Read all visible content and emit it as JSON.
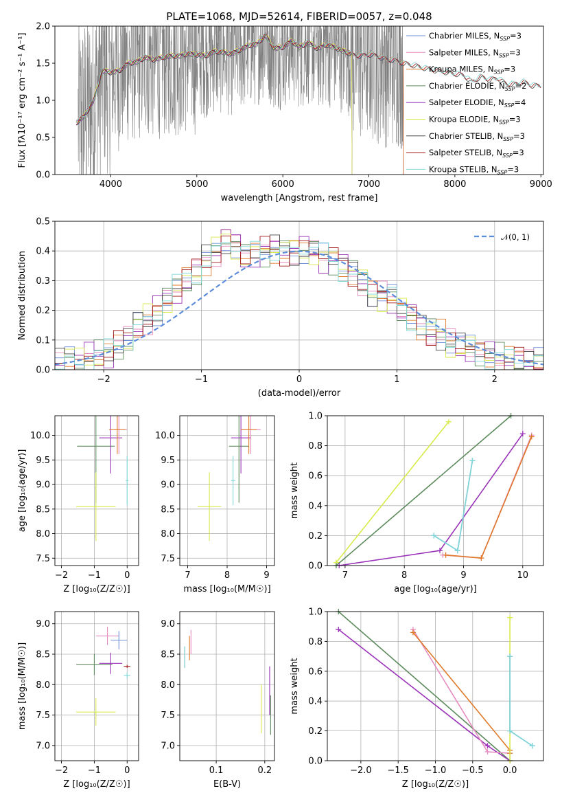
{
  "title": "PLATE=1068, MJD=52614, FIBERID=0057, z=0.048",
  "colors": {
    "Chabrier MILES": "#6f8fd8",
    "Salpeter MILES": "#e58bbf",
    "Kroupa MILES": "#e07a2a",
    "Chabrier ELODIE": "#5c8a5c",
    "Salpeter ELODIE": "#9a34b8",
    "Kroupa ELODIE": "#d8ea4a",
    "Chabrier STELIB": "#444444",
    "Salpeter STELIB": "#a11818",
    "Kroupa STELIB": "#7fd8d8",
    "data": "#808080",
    "gaussian": "#5b8bd9"
  },
  "chart_data": [
    {
      "type": "line",
      "xlabel": "wavelength [Angstrom, rest frame]",
      "ylabel": "Flux [fλ10⁻¹⁷ erg cm⁻² s⁻¹ A⁻¹]",
      "xlim": [
        3350,
        9030
      ],
      "ylim": [
        0,
        2.0
      ],
      "xticks": [
        "4000",
        "5000",
        "6000",
        "7000",
        "8000",
        "9000"
      ],
      "yticks": [
        "0.0",
        "0.5",
        "1.0",
        "1.5",
        "2.0"
      ],
      "legend_position": "right",
      "legend": [
        "Chabrier MILES, NSSP=3",
        "Salpeter MILES, NSSP=3",
        "Kroupa MILES, NSSP=3",
        "Chabrier ELODIE, NSSP=2",
        "Salpeter ELODIE, NSSP=4",
        "Kroupa ELODIE, NSSP=3",
        "Chabrier STELIB, NSSP=3",
        "Salpeter STELIB, NSSP=3",
        "Kroupa STELIB, NSSP=3"
      ],
      "model_curve": {
        "x": [
          3600,
          3700,
          3800,
          3900,
          4000,
          4100,
          4200,
          4300,
          4400,
          4500,
          4600,
          4700,
          4800,
          4900,
          5000,
          5100,
          5200,
          5300,
          5400,
          5500,
          5600,
          5700,
          5800,
          5900,
          6000,
          6100,
          6200,
          6300,
          6400,
          6500,
          6600,
          6700,
          6800,
          6900,
          7000,
          7100,
          7200,
          7300,
          7400,
          7500,
          7600,
          7700,
          7800,
          7900,
          8000,
          8100,
          8200,
          8300,
          8400,
          8500,
          8600,
          8700,
          8800,
          8900,
          9000
        ],
        "y": [
          0.7,
          0.8,
          1.0,
          1.4,
          1.38,
          1.4,
          1.5,
          1.52,
          1.58,
          1.55,
          1.58,
          1.6,
          1.6,
          1.63,
          1.62,
          1.6,
          1.66,
          1.65,
          1.63,
          1.68,
          1.74,
          1.76,
          1.88,
          1.7,
          1.72,
          1.8,
          1.72,
          1.78,
          1.7,
          1.75,
          1.72,
          1.67,
          1.62,
          1.6,
          1.62,
          1.6,
          1.55,
          1.54,
          1.5,
          1.48,
          1.45,
          1.42,
          1.4,
          1.38,
          1.36,
          1.34,
          1.25,
          1.32,
          1.28,
          1.3,
          1.22,
          1.22,
          1.25,
          1.2,
          1.2
        ]
      },
      "data_range": [
        3620,
        7400
      ],
      "model_coverage_end": {
        "Chabrier MILES": 7400,
        "Salpeter MILES": 7400,
        "Kroupa MILES": 7400,
        "Chabrier ELODIE": 6800,
        "Salpeter ELODIE": 6800,
        "Kroupa ELODIE": 6800,
        "Chabrier STELIB": 9000,
        "Salpeter STELIB": 9000,
        "Kroupa STELIB": 9000
      }
    },
    {
      "type": "bar",
      "xlabel": "(data-model)/error",
      "ylabel": "Normed distribution",
      "xlim": [
        -2.5,
        2.5
      ],
      "ylim": [
        0,
        0.5
      ],
      "xticks": [
        "−2",
        "−1",
        "0",
        "1",
        "2"
      ],
      "yticks": [
        "0.0",
        "0.1",
        "0.2",
        "0.3",
        "0.4",
        "0.5"
      ],
      "legend": [
        "𝒩(0, 1)"
      ],
      "legend_position": "top-right",
      "bin_edges_start": -2.5,
      "bin_width": 0.1,
      "histogram": [
        0.02,
        0.03,
        0.03,
        0.04,
        0.05,
        0.05,
        0.08,
        0.1,
        0.15,
        0.17,
        0.2,
        0.24,
        0.27,
        0.3,
        0.33,
        0.37,
        0.4,
        0.44,
        0.42,
        0.38,
        0.39,
        0.4,
        0.41,
        0.4,
        0.4,
        0.41,
        0.4,
        0.38,
        0.37,
        0.35,
        0.33,
        0.3,
        0.26,
        0.25,
        0.24,
        0.2,
        0.18,
        0.15,
        0.13,
        0.12,
        0.09,
        0.08,
        0.07,
        0.06,
        0.05,
        0.04,
        0.03,
        0.03,
        0.02,
        0.02
      ],
      "gaussian": {
        "mean": 0,
        "sigma": 1
      }
    },
    {
      "type": "scatter",
      "xlabel": "Z [log₁₀(Z/Z☉)]",
      "ylabel": "age  [log₁₀(age/yr)]",
      "xlim": [
        -2.2,
        0.35
      ],
      "ylim": [
        7.35,
        10.4
      ],
      "xticks": [
        "−2",
        "−1",
        "0"
      ],
      "yticks": [
        "7.5",
        "8.0",
        "8.5",
        "9.0",
        "9.5",
        "10.0"
      ],
      "errorbars": [
        {
          "series": "Chabrier ELODIE",
          "x": -0.95,
          "y": 9.78,
          "xerr": 1.15,
          "yerr": 2.3
        },
        {
          "series": "Salpeter ELODIE",
          "x": -0.5,
          "y": 9.95,
          "xerr": 0.7,
          "yerr": 1.45
        },
        {
          "series": "Kroupa ELODIE",
          "x": -0.95,
          "y": 8.55,
          "xerr": 1.2,
          "yerr": 1.4
        },
        {
          "series": "Salpeter MILES",
          "x": -0.25,
          "y": 10.12,
          "xerr": 0.5,
          "yerr": 1.0
        },
        {
          "series": "Kroupa MILES",
          "x": -0.3,
          "y": 10.12,
          "xerr": 0.5,
          "yerr": 1.0
        },
        {
          "series": "Kroupa STELIB",
          "x": 0.0,
          "y": 9.08,
          "xerr": 0.08,
          "yerr": 1.0
        }
      ]
    },
    {
      "type": "scatter",
      "xlabel": "mass [log₁₀(M/M☉)]",
      "ylabel": "",
      "xlim": [
        6.8,
        9.2
      ],
      "ylim": [
        7.35,
        10.4
      ],
      "xticks": [
        "7",
        "8",
        "9"
      ],
      "yticks": [
        "7.5",
        "8.0",
        "8.5",
        "9.0",
        "9.5",
        "10.0"
      ],
      "errorbars": [
        {
          "series": "Chabrier ELODIE",
          "x": 8.3,
          "y": 9.78,
          "xerr": 0.5,
          "yerr": 2.3
        },
        {
          "series": "Salpeter ELODIE",
          "x": 8.35,
          "y": 9.95,
          "xerr": 0.5,
          "yerr": 1.45
        },
        {
          "series": "Kroupa ELODIE",
          "x": 7.55,
          "y": 8.55,
          "xerr": 0.6,
          "yerr": 1.4
        },
        {
          "series": "Salpeter MILES",
          "x": 8.6,
          "y": 10.12,
          "xerr": 0.5,
          "yerr": 1.0
        },
        {
          "series": "Kroupa MILES",
          "x": 8.55,
          "y": 10.12,
          "xerr": 0.4,
          "yerr": 1.0
        },
        {
          "series": "Kroupa STELIB",
          "x": 8.15,
          "y": 9.08,
          "xerr": 0.1,
          "yerr": 1.0
        }
      ]
    },
    {
      "type": "line",
      "xlabel": "age  [log₁₀(age/yr)]",
      "ylabel": "mass weight",
      "xlim": [
        6.7,
        10.35
      ],
      "ylim": [
        0,
        1.0
      ],
      "xticks": [
        "7",
        "8",
        "9",
        "10"
      ],
      "yticks": [
        "0.0",
        "0.2",
        "0.4",
        "0.6",
        "0.8",
        "1.0"
      ],
      "series": [
        {
          "key": "Kroupa ELODIE",
          "x": [
            6.85,
            8.75
          ],
          "y": [
            0.02,
            0.96
          ]
        },
        {
          "key": "Chabrier ELODIE",
          "x": [
            6.85,
            9.8
          ],
          "y": [
            0.0,
            1.0
          ]
        },
        {
          "key": "Salpeter ELODIE",
          "x": [
            6.9,
            8.6,
            10.0
          ],
          "y": [
            0.0,
            0.1,
            0.88
          ]
        },
        {
          "key": "Salpeter MILES",
          "x": [
            8.65,
            9.3,
            10.15
          ],
          "y": [
            0.07,
            0.05,
            0.87
          ]
        },
        {
          "key": "Kroupa MILES",
          "x": [
            8.7,
            9.3,
            10.15
          ],
          "y": [
            0.07,
            0.05,
            0.86
          ]
        },
        {
          "key": "Chabrier MILES",
          "x": [
            8.5,
            8.9,
            9.15
          ],
          "y": [
            0.2,
            0.1,
            0.7
          ]
        },
        {
          "key": "Kroupa STELIB",
          "x": [
            8.5,
            8.9,
            9.15
          ],
          "y": [
            0.2,
            0.1,
            0.7
          ]
        }
      ]
    },
    {
      "type": "scatter",
      "xlabel": "Z [log₁₀(Z/Z☉)]",
      "ylabel": "mass [log₁₀(M/M☉)]",
      "xlim": [
        -2.2,
        0.35
      ],
      "ylim": [
        6.75,
        9.2
      ],
      "xticks": [
        "−2",
        "−1",
        "0"
      ],
      "yticks": [
        "7.0",
        "7.5",
        "8.0",
        "8.5",
        "9.0"
      ],
      "errorbars": [
        {
          "series": "Chabrier ELODIE",
          "x": -1.0,
          "y": 8.33,
          "xerr": 1.1,
          "yerr": 0.35
        },
        {
          "series": "Salpeter ELODIE",
          "x": -0.5,
          "y": 8.35,
          "xerr": 0.7,
          "yerr": 0.35
        },
        {
          "series": "Kroupa ELODIE",
          "x": -0.95,
          "y": 7.55,
          "xerr": 1.2,
          "yerr": 0.45
        },
        {
          "series": "Salpeter MILES",
          "x": -0.6,
          "y": 8.8,
          "xerr": 0.7,
          "yerr": 0.3
        },
        {
          "series": "Chabrier MILES",
          "x": -0.25,
          "y": 8.73,
          "xerr": 0.5,
          "yerr": 0.3
        },
        {
          "series": "Kroupa STELIB",
          "x": 0.0,
          "y": 8.15,
          "xerr": 0.2,
          "yerr": 0.1
        },
        {
          "series": "Salpeter STELIB",
          "x": 0.0,
          "y": 8.3,
          "xerr": 0.2,
          "yerr": 0.05
        }
      ]
    },
    {
      "type": "scatter",
      "xlabel": "E(B-V)",
      "ylabel": "",
      "xlim": [
        0.025,
        0.22
      ],
      "ylim": [
        6.75,
        9.2
      ],
      "xticks": [
        "0.1",
        "0.2"
      ],
      "yticks": [
        "7.0",
        "7.5",
        "8.0",
        "8.5",
        "9.0"
      ],
      "errorbars": [
        {
          "series": "Chabrier STELIB",
          "x": 0.035,
          "y": 8.45,
          "xerr": 0.0,
          "yerr": 0.35
        },
        {
          "series": "Kroupa STELIB",
          "x": 0.035,
          "y": 8.45,
          "xerr": 0.0,
          "yerr": 0.35
        },
        {
          "series": "Kroupa MILES",
          "x": 0.045,
          "y": 8.6,
          "xerr": 0.0,
          "yerr": 0.4
        },
        {
          "series": "Salpeter MILES",
          "x": 0.048,
          "y": 8.7,
          "xerr": 0.0,
          "yerr": 0.4
        },
        {
          "series": "Kroupa ELODIE",
          "x": 0.193,
          "y": 7.6,
          "xerr": 0.0,
          "yerr": 0.8
        },
        {
          "series": "Salpeter ELODIE",
          "x": 0.21,
          "y": 7.9,
          "xerr": 0.0,
          "yerr": 0.8
        },
        {
          "series": "Chabrier ELODIE",
          "x": 0.212,
          "y": 7.5,
          "xerr": 0.0,
          "yerr": 0.65
        }
      ]
    },
    {
      "type": "line",
      "xlabel": "Z [log₁₀(Z/Z☉)]",
      "ylabel": "mass weight",
      "xlim": [
        -2.45,
        0.45
      ],
      "ylim": [
        0,
        1.0
      ],
      "xticks": [
        "−2.0",
        "−1.5",
        "−1.0",
        "−0.5",
        "0.0"
      ],
      "yticks": [
        "0.0",
        "0.2",
        "0.4",
        "0.6",
        "0.8",
        "1.0"
      ],
      "series": [
        {
          "key": "Chabrier ELODIE",
          "x": [
            -2.3,
            0.0
          ],
          "y": [
            1.0,
            0.0
          ]
        },
        {
          "key": "Salpeter ELODIE",
          "x": [
            -2.3,
            -0.3,
            0.0
          ],
          "y": [
            0.88,
            0.1,
            0.0
          ]
        },
        {
          "key": "Salpeter MILES",
          "x": [
            -1.3,
            -0.3,
            0.0
          ],
          "y": [
            0.88,
            0.06,
            0.05
          ]
        },
        {
          "key": "Kroupa MILES",
          "x": [
            -1.3,
            0.0,
            0.0
          ],
          "y": [
            0.86,
            0.07,
            0.05
          ]
        },
        {
          "key": "Kroupa ELODIE",
          "x": [
            0.0,
            0.0
          ],
          "y": [
            0.96,
            0.0
          ]
        },
        {
          "key": "Chabrier MILES",
          "x": [
            0.0,
            0.0,
            0.3
          ],
          "y": [
            0.7,
            0.2,
            0.1
          ]
        },
        {
          "key": "Kroupa STELIB",
          "x": [
            0.0,
            0.0,
            0.3
          ],
          "y": [
            0.7,
            0.2,
            0.1
          ]
        }
      ]
    }
  ]
}
